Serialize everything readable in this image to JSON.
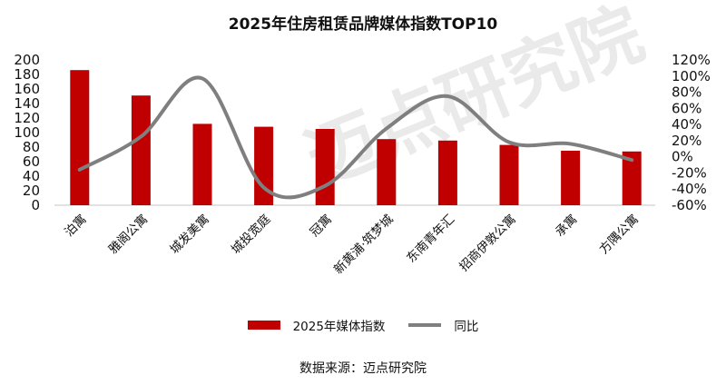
{
  "chart_data": {
    "type": "bar+line",
    "title": "2025年住房租赁品牌媒体指数TOP10",
    "categories": [
      "泊寓",
      "雅阁公寓",
      "城发美寓",
      "城投宽庭",
      "冠寓",
      "新黄浦·筑梦城",
      "东南青年汇",
      "招商伊敦公寓",
      "承寓",
      "方隅公寓"
    ],
    "series": [
      {
        "name": "2025年媒体指数",
        "type": "bar",
        "axis": "left",
        "color": "#c00000",
        "values": [
          186,
          151,
          112,
          108,
          105,
          91,
          89,
          83,
          75,
          74
        ]
      },
      {
        "name": "同比",
        "type": "line",
        "axis": "right",
        "color": "#7f7f7f",
        "values": [
          -16,
          25,
          97,
          -38,
          -36,
          35,
          75,
          18,
          16,
          -4
        ]
      }
    ],
    "y_left": {
      "range": [
        0,
        200
      ],
      "ticks": [
        "0",
        "20",
        "40",
        "60",
        "80",
        "100",
        "120",
        "140",
        "160",
        "180",
        "200"
      ]
    },
    "y_right": {
      "range": [
        -60,
        120
      ],
      "unit": "%",
      "ticks": [
        "-60%",
        "-40%",
        "-20%",
        "0%",
        "20%",
        "40%",
        "60%",
        "80%",
        "100%",
        "120%"
      ]
    },
    "legend_position": "bottom",
    "grid": false
  },
  "source": "数据来源：迈点研究院",
  "watermark": "迈点研究院 MEADIN ACADEMY"
}
